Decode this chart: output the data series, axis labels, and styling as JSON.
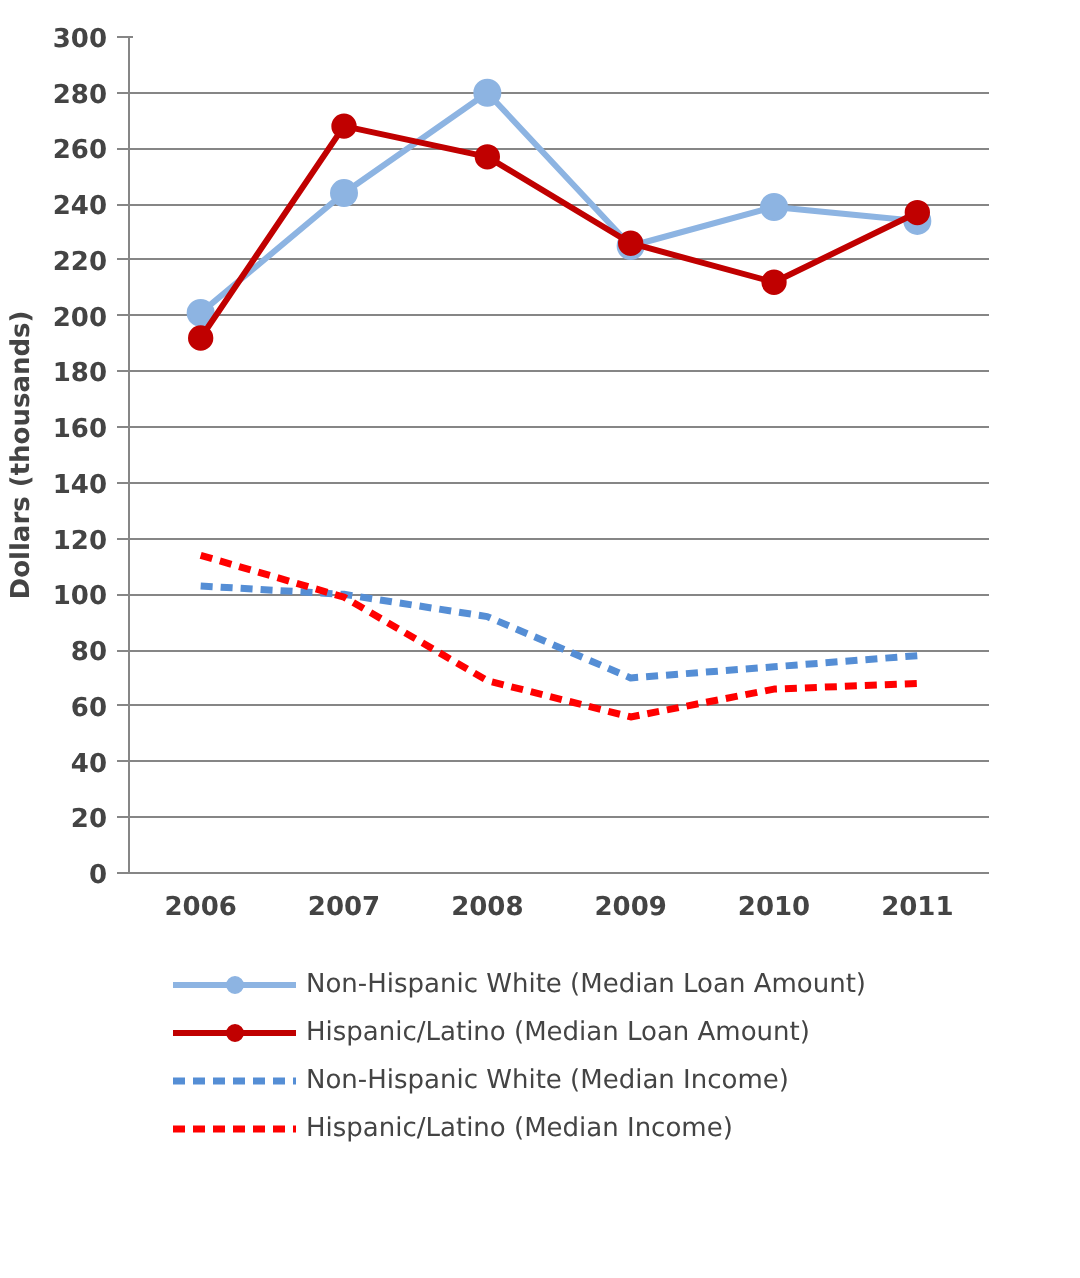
{
  "chart_data": {
    "type": "line",
    "ylabel": "Dollars (thousands)",
    "categories": [
      "2006",
      "2007",
      "2008",
      "2009",
      "2010",
      "2011"
    ],
    "series": [
      {
        "name": "Non-Hispanic White (Median Loan Amount)",
        "color": "#8db4e2",
        "marker": "circle",
        "line_style": "solid",
        "values": [
          201,
          244,
          280,
          225,
          239,
          234
        ]
      },
      {
        "name": "Hispanic/Latino (Median Loan Amount)",
        "color": "#c00000",
        "marker": "circle",
        "line_style": "solid",
        "values": [
          192,
          268,
          257,
          226,
          212,
          237
        ]
      },
      {
        "name": "Non-Hispanic White (Median Income)",
        "color": "#558ed5",
        "marker": "none",
        "line_style": "dashed",
        "values": [
          103,
          100,
          92,
          70,
          74,
          78
        ]
      },
      {
        "name": "Hispanic/Latino (Median Income)",
        "color": "#ff0000",
        "marker": "none",
        "line_style": "dashed",
        "values": [
          114,
          99,
          69,
          56,
          66,
          68
        ]
      }
    ],
    "ylim": [
      0,
      300
    ],
    "yticks": [
      0,
      20,
      40,
      60,
      80,
      100,
      120,
      140,
      160,
      180,
      200,
      220,
      240,
      260,
      280,
      300
    ],
    "grid": "y",
    "legend": "bottom"
  }
}
